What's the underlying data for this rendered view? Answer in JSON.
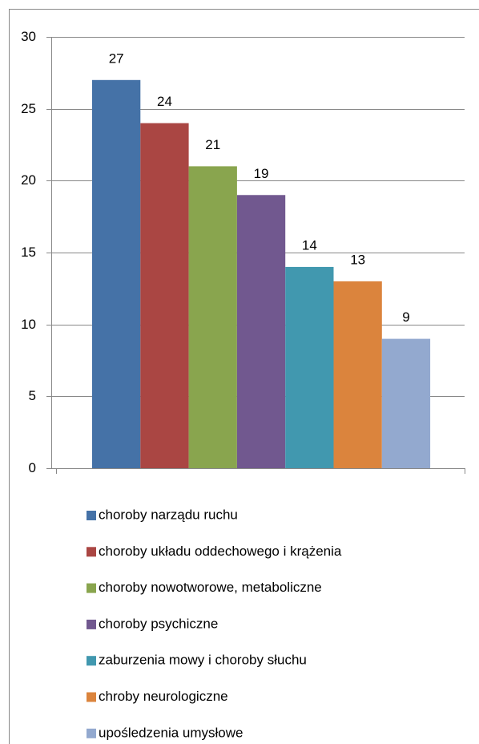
{
  "chart_data": {
    "type": "bar",
    "categories": [
      null
    ],
    "series": [
      {
        "name": "choroby narządu ruchu",
        "color": "#4572a7",
        "values": [
          27
        ]
      },
      {
        "name": "choroby układu oddechowego i krążenia",
        "color": "#aa4643",
        "values": [
          24
        ]
      },
      {
        "name": "choroby nowotworowe, metaboliczne",
        "color": "#89a54e",
        "values": [
          21
        ]
      },
      {
        "name": "choroby psychiczne",
        "color": "#71588f",
        "values": [
          19
        ]
      },
      {
        "name": "zaburzenia mowy i choroby słuchu",
        "color": "#4198af",
        "values": [
          14
        ]
      },
      {
        "name": "chroby neurologiczne",
        "color": "#db843d",
        "values": [
          13
        ]
      },
      {
        "name": "upośledzenia umysłowe",
        "color": "#93a9cf",
        "values": [
          9
        ]
      }
    ],
    "ylim": [
      0,
      30
    ],
    "yticks": [
      0,
      5,
      10,
      15,
      20,
      25,
      30
    ],
    "grid": true,
    "legend": "bottom"
  }
}
